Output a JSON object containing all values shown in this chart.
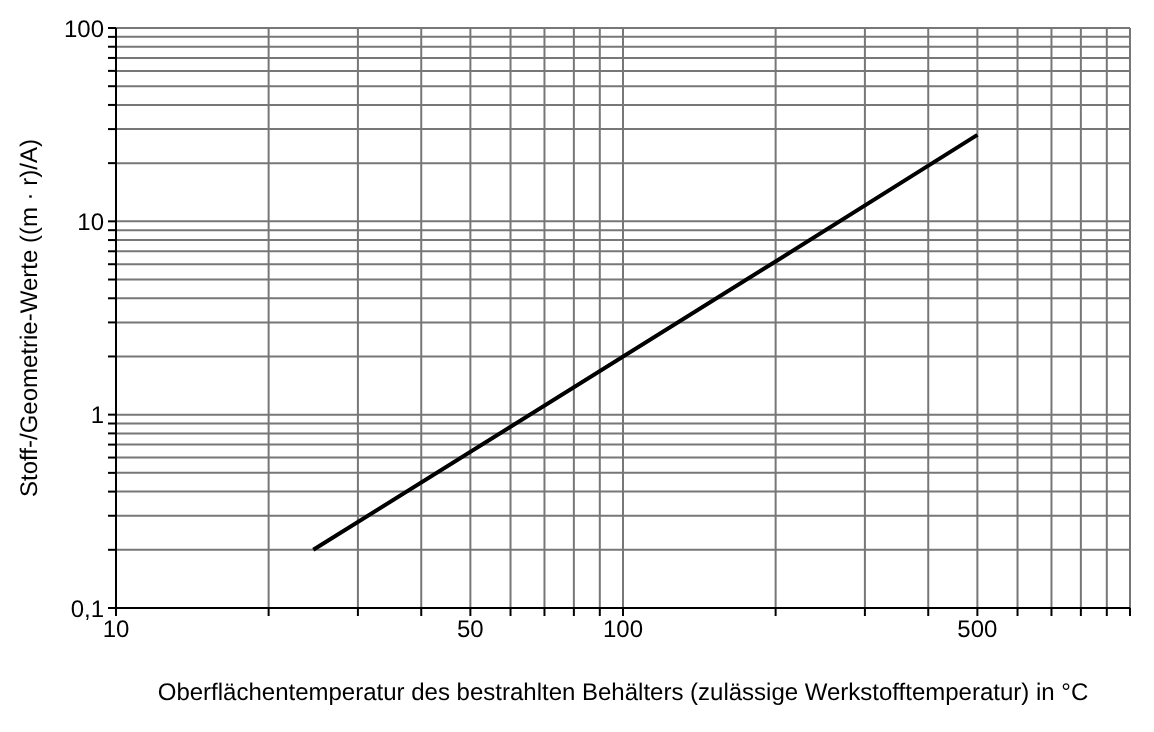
{
  "chart_data": {
    "type": "line",
    "xlabel": "Oberflächentemperatur des bestrahlten Behälters (zulässige Werkstofftemperatur) in °C",
    "ylabel": "Stoff-/Geometrie-Werte ((m · r)/A)",
    "log": "xy",
    "grid": true,
    "marker": "none",
    "line_style": "solid",
    "x": [
      24.5,
      200,
      500
    ],
    "series": [
      {
        "color": "#000000",
        "values": [
          0.2,
          6.2,
          28
        ]
      }
    ],
    "xlim": [
      10,
      1000
    ],
    "xticks": [
      10,
      {
        "value": 20,
        "label": null
      },
      {
        "value": 30,
        "label": null
      },
      {
        "value": 40,
        "label": null
      },
      50,
      {
        "value": 60,
        "label": null
      },
      {
        "value": 70,
        "label": null
      },
      {
        "value": 80,
        "label": null
      },
      {
        "value": 90,
        "label": null
      },
      100,
      {
        "value": 200,
        "label": null
      },
      {
        "value": 300,
        "label": null
      },
      {
        "value": 400,
        "label": null
      },
      500,
      {
        "value": 600,
        "label": null
      },
      {
        "value": 700,
        "label": null
      },
      {
        "value": 800,
        "label": null
      },
      {
        "value": 900,
        "label": null
      },
      {
        "value": 1000,
        "label": null
      }
    ],
    "ylim": [
      0.1,
      100
    ],
    "yticks": [
      {
        "value": 0.1,
        "label": "0,1"
      },
      {
        "value": 0.2,
        "label": null
      },
      {
        "value": 0.3,
        "label": null
      },
      {
        "value": 0.4,
        "label": null
      },
      {
        "value": 0.5,
        "label": null
      },
      {
        "value": 0.6,
        "label": null
      },
      {
        "value": 0.7,
        "label": null
      },
      {
        "value": 0.8,
        "label": null
      },
      {
        "value": 0.9,
        "label": null
      },
      1,
      {
        "value": 2,
        "label": null
      },
      {
        "value": 3,
        "label": null
      },
      {
        "value": 4,
        "label": null
      },
      {
        "value": 5,
        "label": null
      },
      {
        "value": 6,
        "label": null
      },
      {
        "value": 7,
        "label": null
      },
      {
        "value": 8,
        "label": null
      },
      {
        "value": 9,
        "label": null
      },
      10,
      {
        "value": 20,
        "label": null
      },
      {
        "value": 30,
        "label": null
      },
      {
        "value": 40,
        "label": null
      },
      {
        "value": 50,
        "label": null
      },
      {
        "value": 60,
        "label": null
      },
      {
        "value": 70,
        "label": null
      },
      {
        "value": 80,
        "label": null
      },
      {
        "value": 90,
        "label": null
      },
      100
    ]
  }
}
